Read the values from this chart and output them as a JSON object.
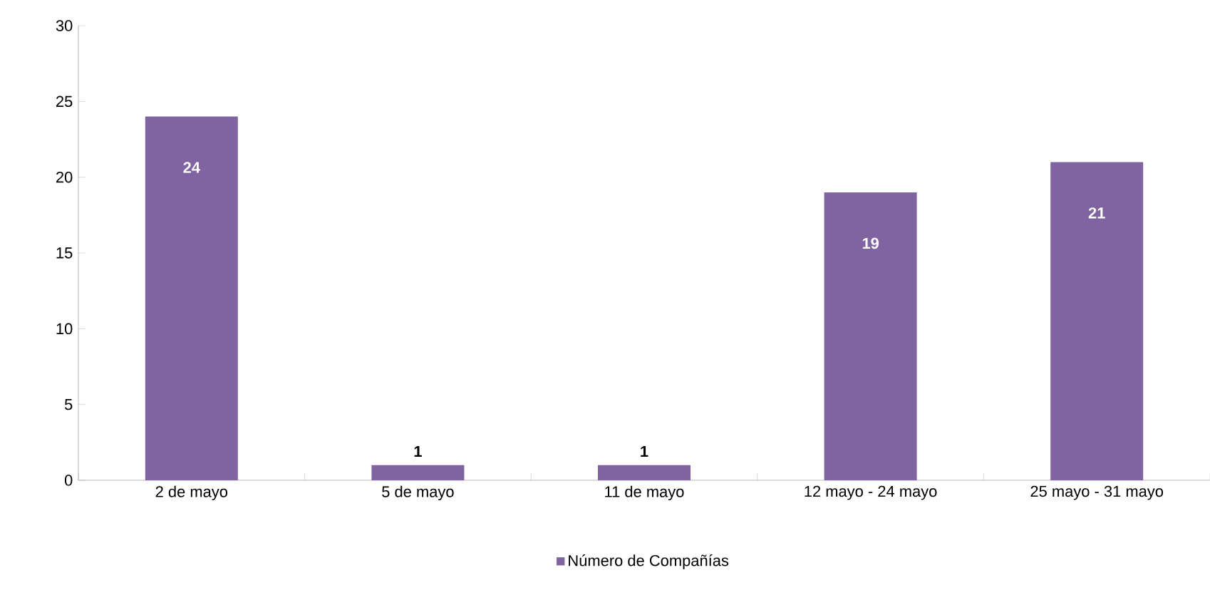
{
  "chart_data": {
    "type": "bar",
    "categories": [
      "2 de mayo",
      "5 de mayo",
      "11 de mayo",
      "12 mayo - 24 mayo",
      "25 mayo - 31 mayo"
    ],
    "series": [
      {
        "name": "Número de Compañías",
        "color": "#8064a2",
        "values": [
          24,
          1,
          1,
          19,
          21
        ]
      }
    ],
    "ylim": [
      0,
      30
    ],
    "yticks": [
      0,
      5,
      10,
      15,
      20,
      25,
      30
    ],
    "data_labels": true,
    "legend": "bottom",
    "grid": false
  }
}
